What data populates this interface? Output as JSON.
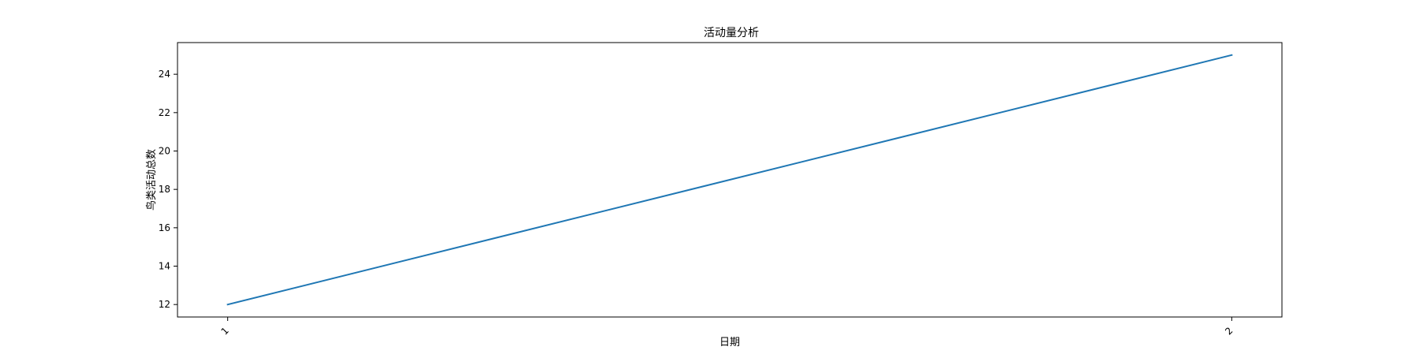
{
  "chart_data": {
    "type": "line",
    "title": "活动量分析",
    "xlabel": "日期",
    "ylabel": "鸟类活动总数",
    "x": [
      "1",
      "2"
    ],
    "series": [
      {
        "values": [
          12,
          25
        ],
        "color": "#1f77b4"
      }
    ],
    "ylim": [
      11.35,
      25.65
    ],
    "yticks": [
      12,
      14,
      16,
      18,
      20,
      22,
      24
    ],
    "xtick_rotation": "45 degrees",
    "grid": false,
    "legend": "none"
  }
}
